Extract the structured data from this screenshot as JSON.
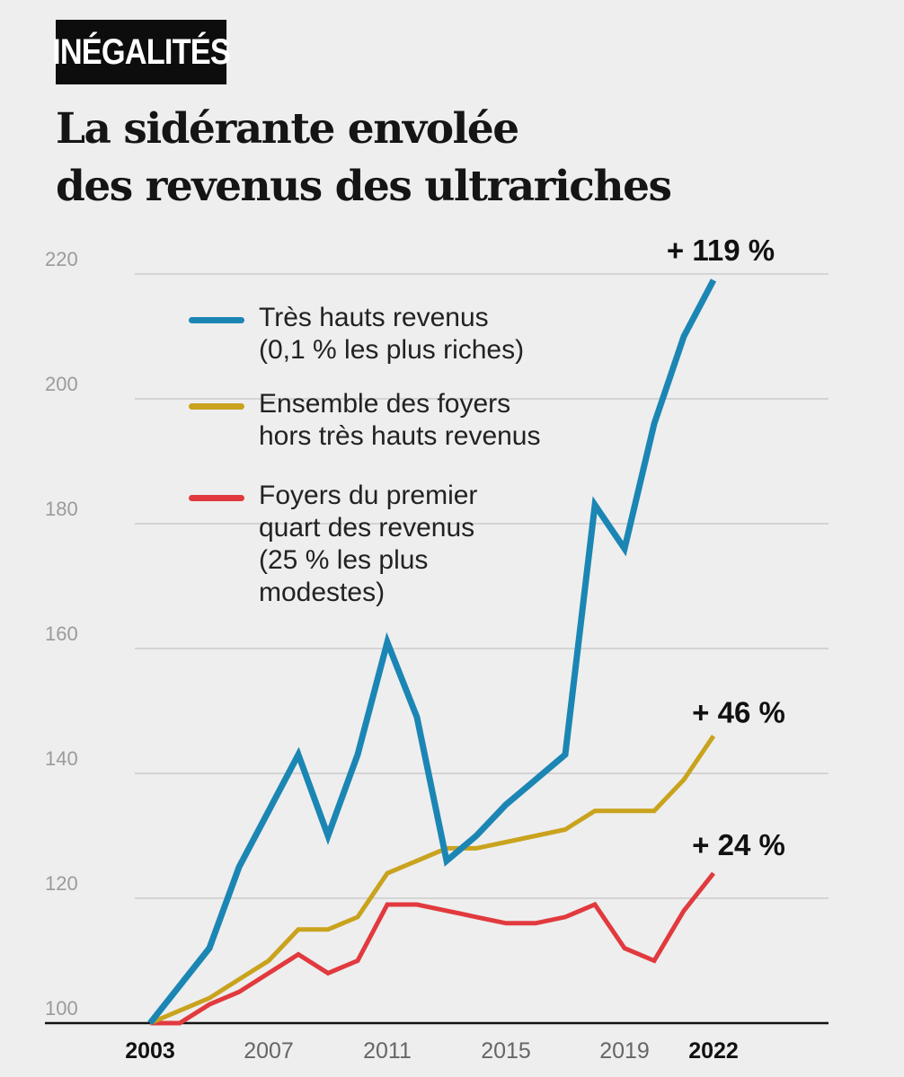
{
  "header": {
    "tag": "INÉGALITÉS",
    "title_line1": "La sidérante envolée",
    "title_line2": "des revenus des ultrariches"
  },
  "colors": {
    "background": "#eeeeee",
    "tres_hauts": "#1b86b4",
    "ensemble": "#c9a31d",
    "premier_quart": "#e13a3e",
    "grid": "#c4c4c4",
    "axis": "#111111",
    "tick": "#9b9b9b"
  },
  "legend": [
    {
      "key": "tres_hauts",
      "lines": [
        "Très hauts revenus",
        "(0,1 % les plus riches)"
      ]
    },
    {
      "key": "ensemble",
      "lines": [
        "Ensemble des foyers",
        "hors très hauts revenus"
      ]
    },
    {
      "key": "premier_quart",
      "lines": [
        "Foyers du premier",
        "quart des revenus",
        "(25 % les plus",
        "modestes)"
      ]
    }
  ],
  "chart_data": {
    "type": "line",
    "title": "La sidérante envolée des revenus des ultrariches",
    "xlabel": "",
    "ylabel": "",
    "x": [
      2003,
      2004,
      2005,
      2006,
      2007,
      2008,
      2009,
      2010,
      2011,
      2012,
      2013,
      2014,
      2015,
      2016,
      2017,
      2018,
      2019,
      2020,
      2021,
      2022
    ],
    "x_ticks": [
      "2003",
      "2007",
      "2011",
      "2015",
      "2019",
      "2022"
    ],
    "y_ticks": [
      "100",
      "120",
      "140",
      "160",
      "180",
      "200",
      "220"
    ],
    "ylim": [
      100,
      220
    ],
    "grid": true,
    "series": [
      {
        "key": "tres_hauts",
        "name": "Très hauts revenus (0,1 % les plus riches)",
        "values": [
          100,
          106,
          112,
          125,
          134,
          143,
          130,
          143,
          161,
          149,
          126,
          130,
          135,
          139,
          143,
          183,
          176,
          196,
          210,
          219
        ]
      },
      {
        "key": "ensemble",
        "name": "Ensemble des foyers hors très hauts revenus",
        "values": [
          100,
          102,
          104,
          107,
          110,
          115,
          115,
          117,
          124,
          126,
          128,
          128,
          129,
          130,
          131,
          134,
          134,
          134,
          139,
          146
        ]
      },
      {
        "key": "premier_quart",
        "name": "Foyers du premier quart des revenus (25 % les plus modestes)",
        "values": [
          100,
          100,
          103,
          105,
          108,
          111,
          108,
          110,
          119,
          119,
          118,
          117,
          116,
          116,
          117,
          119,
          112,
          110,
          118,
          124
        ]
      }
    ],
    "annotations": [
      {
        "series": "tres_hauts",
        "text": "+ 119 %"
      },
      {
        "series": "ensemble",
        "text": "+ 46 %"
      },
      {
        "series": "premier_quart",
        "text": "+ 24 %"
      }
    ]
  }
}
